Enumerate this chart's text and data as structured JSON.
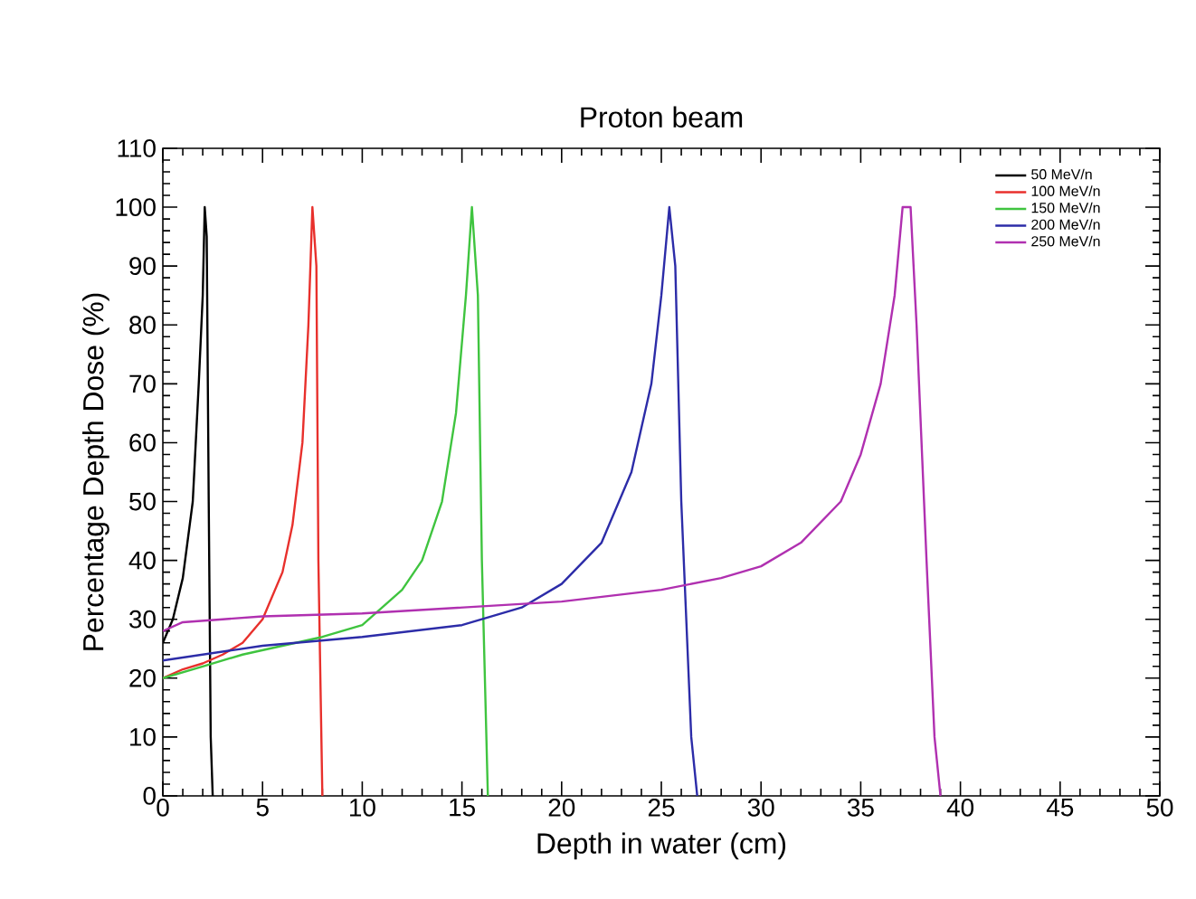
{
  "chart_data": {
    "type": "line",
    "title": "Proton beam",
    "xlabel": "Depth in water (cm)",
    "ylabel": "Percentage Depth Dose (%)",
    "xlim": [
      0,
      50
    ],
    "ylim": [
      0,
      110
    ],
    "xticks": [
      0,
      5,
      10,
      15,
      20,
      25,
      30,
      35,
      40,
      45,
      50
    ],
    "yticks": [
      0,
      10,
      20,
      30,
      40,
      50,
      60,
      70,
      80,
      90,
      100,
      110
    ],
    "legend": "top right",
    "grid": false,
    "marker": "none",
    "line_style": "solid",
    "series": [
      {
        "name": "50 MeV/n",
        "color": "#000000",
        "x": [
          0,
          0.5,
          1,
          1.5,
          1.8,
          2,
          2.1,
          2.2,
          2.3,
          2.4,
          2.5
        ],
        "values": [
          26,
          30,
          37,
          50,
          70,
          85,
          100,
          95,
          50,
          10,
          0
        ]
      },
      {
        "name": "100 MeV/n",
        "color": "#e8302c",
        "x": [
          0,
          1,
          2,
          3,
          4,
          5,
          6,
          6.5,
          7,
          7.3,
          7.5,
          7.7,
          7.8,
          8
        ],
        "values": [
          20,
          21.5,
          22.5,
          24,
          26,
          30,
          38,
          46,
          60,
          80,
          100,
          90,
          40,
          0
        ]
      },
      {
        "name": "150 MeV/n",
        "color": "#3fc43f",
        "x": [
          0,
          2,
          4,
          6,
          8,
          10,
          12,
          13,
          14,
          14.7,
          15.2,
          15.5,
          15.8,
          16,
          16.3
        ],
        "values": [
          20,
          22,
          24,
          25.5,
          27,
          29,
          35,
          40,
          50,
          65,
          85,
          100,
          85,
          40,
          0
        ]
      },
      {
        "name": "200 MeV/n",
        "color": "#2c2ca8",
        "x": [
          0,
          5,
          10,
          15,
          18,
          20,
          22,
          23.5,
          24.5,
          25,
          25.4,
          25.7,
          26,
          26.5,
          26.8
        ],
        "values": [
          23,
          25.5,
          27,
          29,
          32,
          36,
          43,
          55,
          70,
          85,
          100,
          90,
          50,
          10,
          0
        ]
      },
      {
        "name": "250 MeV/n",
        "color": "#b030b0",
        "x": [
          0,
          1,
          3,
          5,
          10,
          15,
          20,
          25,
          28,
          30,
          32,
          34,
          35,
          36,
          36.7,
          37.1,
          37.5,
          37.8,
          38.3,
          38.7,
          39
        ],
        "values": [
          28,
          29.5,
          30,
          30.5,
          31,
          32,
          33,
          35,
          37,
          39,
          43,
          50,
          58,
          70,
          85,
          100,
          100,
          80,
          40,
          10,
          0
        ]
      }
    ]
  }
}
